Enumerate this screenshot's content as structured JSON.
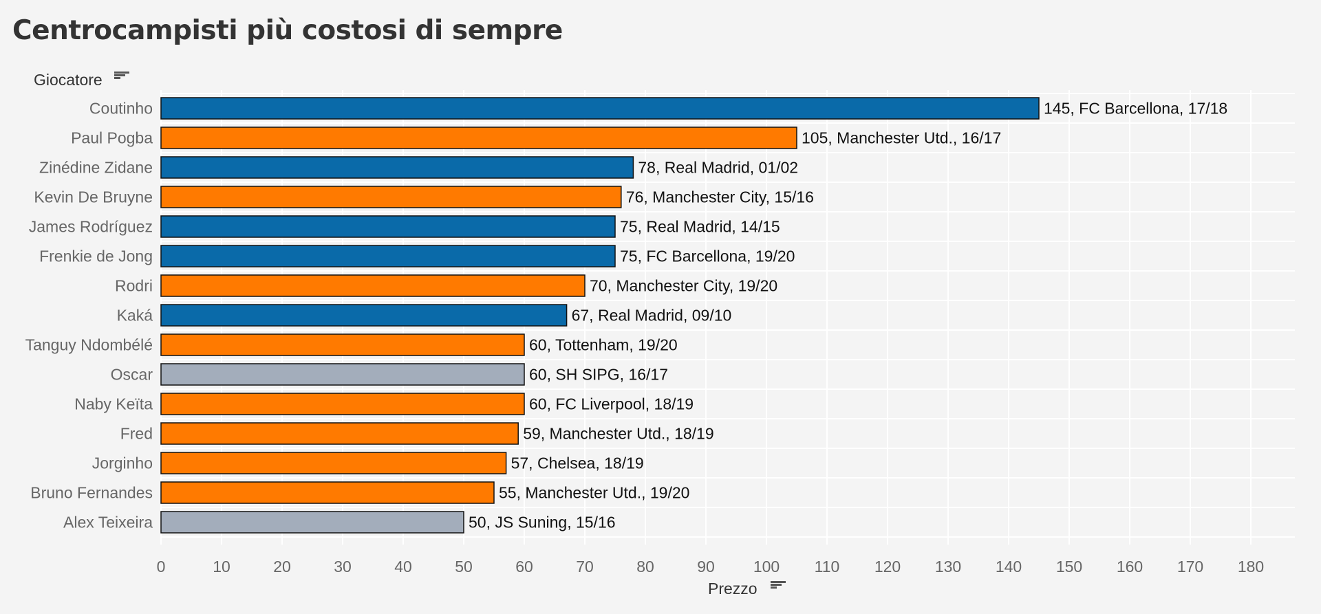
{
  "title": "Centrocampisti più costosi di sempre",
  "chart_data": {
    "type": "bar",
    "orientation": "horizontal",
    "title": "Centrocampisti più costosi di sempre",
    "ylabel": "Giocatore",
    "xlabel": "Prezzo",
    "xlim": [
      0,
      180
    ],
    "xticks": [
      0,
      10,
      20,
      30,
      40,
      50,
      60,
      70,
      80,
      90,
      100,
      110,
      120,
      130,
      140,
      150,
      160,
      170,
      180
    ],
    "grid": true,
    "categories": [
      "Coutinho",
      "Paul Pogba",
      "Zinédine Zidane",
      "Kevin De Bruyne",
      "James Rodríguez",
      "Frenkie de Jong",
      "Rodri",
      "Kaká",
      "Tanguy Ndombélé",
      "Oscar",
      "Naby Keïta",
      "Fred",
      "Jorginho",
      "Bruno Fernandes",
      "Alex Teixeira"
    ],
    "values": [
      145,
      105,
      78,
      76,
      75,
      75,
      70,
      67,
      60,
      60,
      60,
      59,
      57,
      55,
      50
    ],
    "labels": [
      "145, FC Barcellona, 17/18",
      "105, Manchester Utd., 16/17",
      "78, Real Madrid, 01/02",
      "76, Manchester City, 15/16",
      "75, Real Madrid, 14/15",
      "75, FC Barcellona, 19/20",
      "70, Manchester City, 19/20",
      "67, Real Madrid, 09/10",
      "60, Tottenham, 19/20",
      "60, SH SIPG, 16/17",
      "60, FC Liverpool, 18/19",
      "59, Manchester Utd., 18/19",
      "57, Chelsea, 18/19",
      "55, Manchester Utd., 19/20",
      "50, JS Suning, 15/16"
    ],
    "groups": [
      "spain",
      "england",
      "spain",
      "england",
      "spain",
      "spain",
      "england",
      "spain",
      "england",
      "china",
      "england",
      "england",
      "england",
      "england",
      "china"
    ],
    "colors": {
      "spain": "#0a6aa9",
      "england": "#ff7a00",
      "china": "#a3adbb"
    }
  }
}
